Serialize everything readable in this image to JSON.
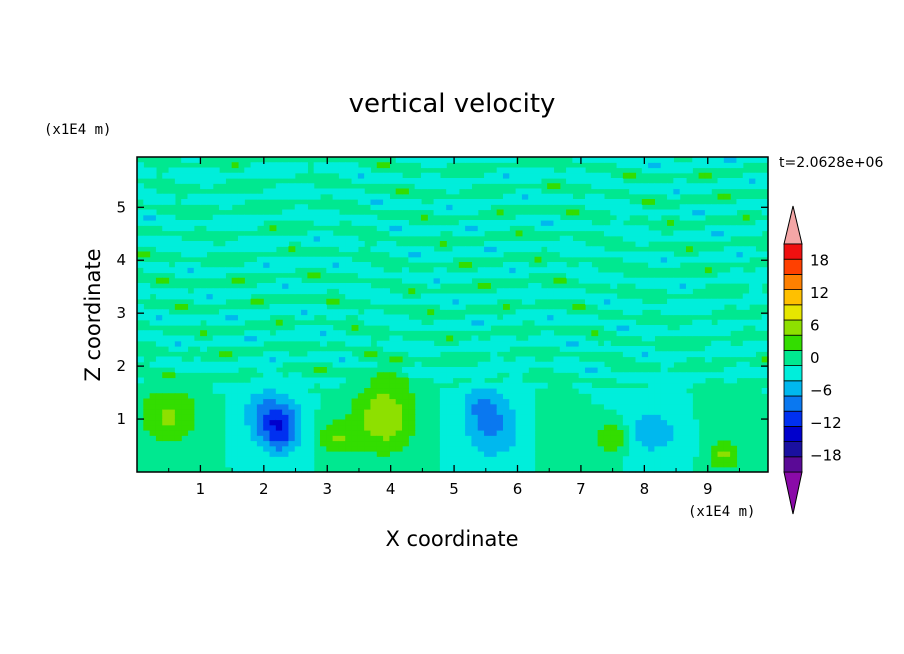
{
  "chart_data": {
    "type": "heatmap",
    "title": "vertical velocity",
    "xlabel": "X coordinate",
    "ylabel": "Z coordinate",
    "x_unit": "(x1E4 m)",
    "y_unit": "(x1E4 m)",
    "time_label": "t=2.0628e+06",
    "xlim": [
      0,
      9.95
    ],
    "ylim": [
      0,
      5.95
    ],
    "x_ticks": [
      1,
      2,
      3,
      4,
      5,
      6,
      7,
      8,
      9
    ],
    "y_ticks": [
      1,
      2,
      3,
      4,
      5
    ],
    "colorbar": {
      "levels": [
        -21,
        -18,
        -15,
        -12,
        -9,
        -6,
        -3,
        0,
        3,
        6,
        9,
        12,
        15,
        18,
        21
      ],
      "tick_labels": [
        "18",
        "12",
        "6",
        "0",
        "−6",
        "−12",
        "−18"
      ],
      "tick_values": [
        18,
        12,
        6,
        0,
        -6,
        -12,
        -18
      ],
      "colors": [
        "#5a0a96",
        "#1a10a0",
        "#0000cc",
        "#0030f0",
        "#0a78f0",
        "#00b8ee",
        "#00eedb",
        "#00e890",
        "#33dd00",
        "#8ee000",
        "#e6e600",
        "#ffc000",
        "#ff8000",
        "#ff4000",
        "#f01010"
      ],
      "under_color": "#8a0aa8",
      "over_color": "#f4a6a6"
    },
    "features": [
      {
        "x": 0.5,
        "z": 1.05,
        "amplitude": 6.5,
        "sx": 0.5,
        "sz": 0.55
      },
      {
        "x": 2.25,
        "z": 0.85,
        "amplitude": -11,
        "sx": 0.33,
        "sz": 0.5
      },
      {
        "x": 1.95,
        "z": 1.15,
        "amplitude": -4,
        "sx": 0.35,
        "sz": 0.5
      },
      {
        "x": 3.15,
        "z": 0.65,
        "amplitude": 5.5,
        "sx": 0.3,
        "sz": 0.35
      },
      {
        "x": 3.9,
        "z": 1.05,
        "amplitude": 8.5,
        "sx": 0.5,
        "sz": 0.7
      },
      {
        "x": 5.6,
        "z": 0.85,
        "amplitude": -6.5,
        "sx": 0.45,
        "sz": 0.6
      },
      {
        "x": 5.4,
        "z": 1.3,
        "amplitude": -3.5,
        "sx": 0.3,
        "sz": 0.35
      },
      {
        "x": 6.55,
        "z": 0.95,
        "amplitude": 2.5,
        "sx": 0.3,
        "sz": 0.55
      },
      {
        "x": 7.5,
        "z": 0.65,
        "amplitude": 6.5,
        "sx": 0.28,
        "sz": 0.35
      },
      {
        "x": 8.1,
        "z": 0.75,
        "amplitude": -4.5,
        "sx": 0.55,
        "sz": 0.5
      },
      {
        "x": 9.25,
        "z": 0.3,
        "amplitude": 6,
        "sx": 0.25,
        "sz": 0.25
      },
      {
        "x": 9.4,
        "z": 0.9,
        "amplitude": 2.2,
        "sx": 0.55,
        "sz": 0.5
      }
    ],
    "upper_field": {
      "description_amplitude": 1.8,
      "z_start": 1.9
    }
  }
}
